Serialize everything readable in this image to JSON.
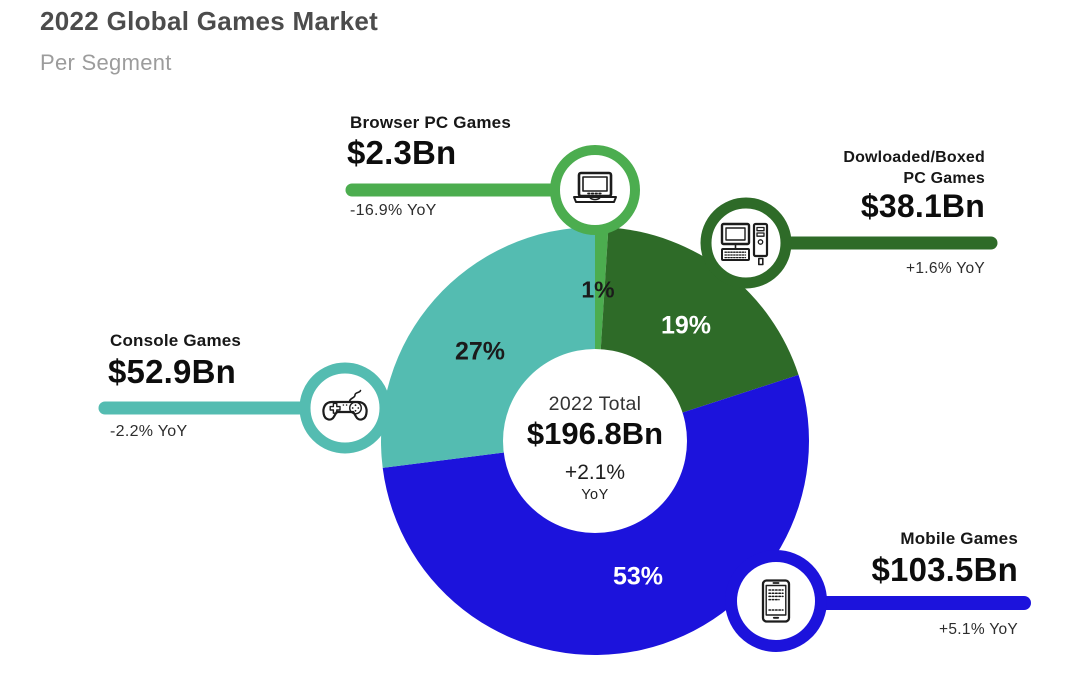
{
  "header": {
    "title": "2022 Global Games Market",
    "subtitle": "Per Segment"
  },
  "center": {
    "label": "2022 Total",
    "value": "$196.8Bn",
    "change": "+2.1%",
    "unit": "YoY"
  },
  "chart_data": {
    "type": "pie",
    "title": "2022 Global Games Market",
    "subtitle": "Per Segment",
    "unit": "USD billions",
    "start_angle_deg": 0,
    "direction": "clockwise",
    "donut": true,
    "total": {
      "label": "2022 Total",
      "value": "$196.8Bn",
      "value_bn": 196.8,
      "yoy": "+2.1%",
      "yoy_pct": 2.1
    },
    "segments": [
      {
        "id": "browser",
        "name": "Browser PC Games",
        "name_lines": [
          "Browser PC Games"
        ],
        "value": "$2.3Bn",
        "value_bn": 2.3,
        "share_pct": 1,
        "share_label": "1%",
        "yoy": "-16.9% YoY",
        "yoy_pct": -16.9,
        "color": "#4cad4f",
        "share_label_color": "#1b1b1b",
        "icon": "laptop-icon"
      },
      {
        "id": "downloaded",
        "name": "Dowloaded/Boxed PC Games",
        "name_lines": [
          "Dowloaded/Boxed",
          "PC Games"
        ],
        "value": "$38.1Bn",
        "value_bn": 38.1,
        "share_pct": 19,
        "share_label": "19%",
        "yoy": "+1.6% YoY",
        "yoy_pct": 1.6,
        "color": "#2e6b28",
        "share_label_color": "#ffffff",
        "icon": "desktop-pc-icon"
      },
      {
        "id": "mobile",
        "name": "Mobile Games",
        "name_lines": [
          "Mobile Games"
        ],
        "value": "$103.5Bn",
        "value_bn": 103.5,
        "share_pct": 53,
        "share_label": "53%",
        "yoy": "+5.1% YoY",
        "yoy_pct": 5.1,
        "color": "#1c13dc",
        "share_label_color": "#ffffff",
        "icon": "smartphone-icon"
      },
      {
        "id": "console",
        "name": "Console Games",
        "name_lines": [
          "Console Games"
        ],
        "value": "$52.9Bn",
        "value_bn": 52.9,
        "share_pct": 27,
        "share_label": "27%",
        "yoy": "-2.2% YoY",
        "yoy_pct": -2.2,
        "color": "#54bcb1",
        "share_label_color": "#1b1b1b",
        "icon": "gamepad-icon"
      }
    ]
  }
}
